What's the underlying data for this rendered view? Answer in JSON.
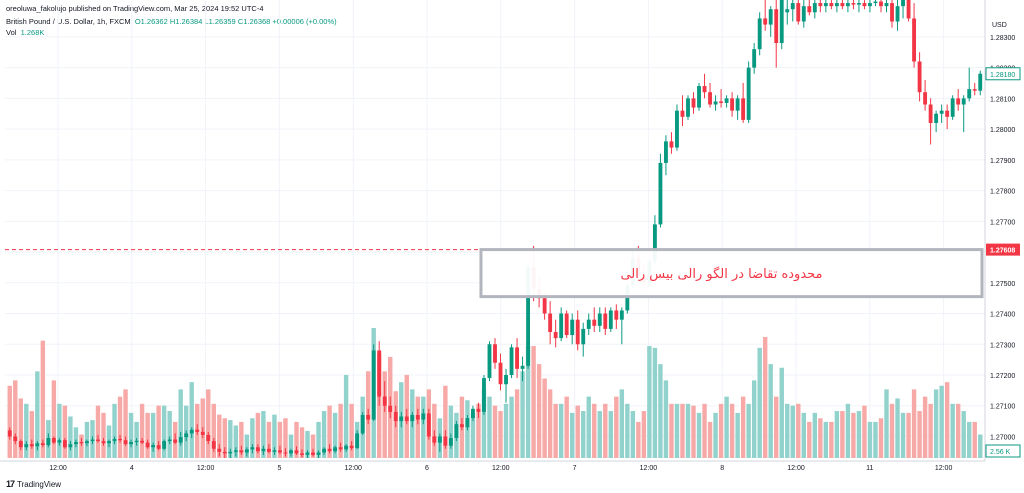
{
  "header": {
    "publisher_line": "oreoluwa_fakolujo published on TradingView.com, Mar 25, 2024 19:52 UTC-4",
    "symbol_line": "British Pound / U.S. Dollar, 1h, FXCM",
    "ohlc": "O1.26362 H1.26384 L1.26359 C1.26368 +0.00006 (+0.00%)",
    "volume_label": "Vol",
    "volume_value": "1.268K"
  },
  "footer": {
    "brand": "TradingView",
    "logo_icon": "tradingview-logo-icon"
  },
  "colors": {
    "up": "#089981",
    "down": "#f23645",
    "vol_up": "#92d2cc",
    "vol_down": "#f7a9a7",
    "dashed_line": "#f23645",
    "box_border": "#b2b5be",
    "box_text": "#f23645"
  },
  "chart_data": {
    "type": "candlestick",
    "currency": "USD",
    "y_ticks": [
      "1.28300",
      "1.28200",
      "1.28100",
      "1.28000",
      "1.27900",
      "1.27800",
      "1.27700",
      "1.27600",
      "1.27500",
      "1.27400",
      "1.27300",
      "1.27200",
      "1.27100",
      "1.27000"
    ],
    "x_ticks": [
      "12:00",
      "4",
      "12:00",
      "5",
      "12:00",
      "6",
      "12:00",
      "7",
      "12:00",
      "8",
      "12:00",
      "11",
      "12:00"
    ],
    "last_price_label": "1.28180",
    "dashed_level_label": "1.27608",
    "dashed_level": 1.27608,
    "volume_label": "2.56 K",
    "annotation": "محدوده تقاضا در الگو رالی بیس رالی",
    "demand_zone": {
      "top": 1.27608,
      "bottom": 1.27455,
      "from_index": 86,
      "to_index": 139
    },
    "ylim": [
      1.2693,
      1.2842
    ],
    "candles": [
      [
        1.2702,
        1.2703,
        1.2699,
        1.27,
        400
      ],
      [
        1.27,
        1.2701,
        1.26975,
        1.26985,
        430
      ],
      [
        1.26985,
        1.2699,
        1.26955,
        1.26965,
        330
      ],
      [
        1.26965,
        1.26985,
        1.26955,
        1.26975,
        300
      ],
      [
        1.26975,
        1.2699,
        1.2696,
        1.26968,
        260
      ],
      [
        1.26968,
        1.26985,
        1.26955,
        1.26978,
        480
      ],
      [
        1.26978,
        1.2699,
        1.26965,
        1.26972,
        650
      ],
      [
        1.26972,
        1.2701,
        1.26965,
        1.26995,
        210
      ],
      [
        1.26995,
        1.27,
        1.26975,
        1.2698,
        430
      ],
      [
        1.2698,
        1.26995,
        1.2697,
        1.26988,
        300
      ],
      [
        1.26988,
        1.26995,
        1.2696,
        1.26965,
        290
      ],
      [
        1.26965,
        1.26985,
        1.26955,
        1.26975,
        230
      ],
      [
        1.26975,
        1.2699,
        1.26965,
        1.26982,
        170
      ],
      [
        1.26982,
        1.26995,
        1.2697,
        1.26978,
        130
      ],
      [
        1.26978,
        1.2699,
        1.26968,
        1.26985,
        200
      ],
      [
        1.26985,
        1.27,
        1.26975,
        1.2699,
        210
      ],
      [
        1.2699,
        1.27005,
        1.2698,
        1.26985,
        290
      ],
      [
        1.26985,
        1.26995,
        1.2697,
        1.26978,
        250
      ],
      [
        1.26978,
        1.2699,
        1.26965,
        1.26985,
        180
      ],
      [
        1.26985,
        1.27,
        1.26975,
        1.26992,
        300
      ],
      [
        1.26992,
        1.27005,
        1.2698,
        1.26988,
        340
      ],
      [
        1.26988,
        1.27,
        1.2697,
        1.26975,
        380
      ],
      [
        1.26975,
        1.2699,
        1.26965,
        1.26982,
        250
      ],
      [
        1.26982,
        1.26995,
        1.2697,
        1.26986,
        200
      ],
      [
        1.26986,
        1.26995,
        1.26975,
        1.2698,
        300
      ],
      [
        1.2698,
        1.2699,
        1.2696,
        1.26965,
        250
      ],
      [
        1.26965,
        1.2698,
        1.2695,
        1.26972,
        250
      ],
      [
        1.26972,
        1.26985,
        1.26955,
        1.2696,
        290
      ],
      [
        1.2696,
        1.2699,
        1.26955,
        1.26985,
        290
      ],
      [
        1.26985,
        1.27,
        1.26975,
        1.2699,
        260
      ],
      [
        1.2699,
        1.2701,
        1.26975,
        1.2698,
        200
      ],
      [
        1.2698,
        1.27015,
        1.2697,
        1.26998,
        380
      ],
      [
        1.26998,
        1.2702,
        1.26985,
        1.2701,
        290
      ],
      [
        1.2701,
        1.2703,
        1.26995,
        1.27022,
        420
      ],
      [
        1.27022,
        1.2704,
        1.27005,
        1.27015,
        300
      ],
      [
        1.27015,
        1.2703,
        1.26995,
        1.27005,
        330
      ],
      [
        1.27005,
        1.27015,
        1.26975,
        1.26985,
        380
      ],
      [
        1.26985,
        1.26995,
        1.2695,
        1.2696,
        300
      ],
      [
        1.2696,
        1.26975,
        1.26935,
        1.2695,
        240
      ],
      [
        1.2695,
        1.26965,
        1.2693,
        1.26945,
        220
      ],
      [
        1.26945,
        1.2696,
        1.2693,
        1.2695,
        210
      ],
      [
        1.2695,
        1.26965,
        1.26935,
        1.26955,
        180
      ],
      [
        1.26955,
        1.2697,
        1.2694,
        1.26948,
        200
      ],
      [
        1.26948,
        1.26965,
        1.26935,
        1.26958,
        130
      ],
      [
        1.26958,
        1.26975,
        1.26945,
        1.26965,
        220
      ],
      [
        1.26965,
        1.26975,
        1.26945,
        1.26952,
        250
      ],
      [
        1.26952,
        1.2697,
        1.2694,
        1.2696,
        260
      ],
      [
        1.2696,
        1.26975,
        1.26945,
        1.2695,
        200
      ],
      [
        1.2695,
        1.26965,
        1.2694,
        1.26955,
        240
      ],
      [
        1.26955,
        1.2697,
        1.26942,
        1.26948,
        200
      ],
      [
        1.26948,
        1.26962,
        1.26935,
        1.26945,
        220
      ],
      [
        1.26945,
        1.2696,
        1.26935,
        1.26955,
        130
      ],
      [
        1.26955,
        1.26968,
        1.2694,
        1.26945,
        200
      ],
      [
        1.26945,
        1.26958,
        1.26932,
        1.2694,
        170
      ],
      [
        1.2694,
        1.26955,
        1.2693,
        1.26948,
        150
      ],
      [
        1.26948,
        1.2696,
        1.26935,
        1.2694,
        130
      ],
      [
        1.2694,
        1.26955,
        1.2693,
        1.26948,
        200
      ],
      [
        1.26948,
        1.26965,
        1.2694,
        1.2696,
        260
      ],
      [
        1.2696,
        1.26975,
        1.26945,
        1.26952,
        290
      ],
      [
        1.26952,
        1.2697,
        1.26945,
        1.26965,
        250
      ],
      [
        1.26965,
        1.2698,
        1.2695,
        1.26958,
        300
      ],
      [
        1.26958,
        1.26975,
        1.2695,
        1.2697,
        460
      ],
      [
        1.2697,
        1.26985,
        1.26955,
        1.26962,
        300
      ],
      [
        1.26962,
        1.2702,
        1.2696,
        1.2701,
        200
      ],
      [
        1.2701,
        1.2708,
        1.27005,
        1.2707,
        340
      ],
      [
        1.2707,
        1.2709,
        1.2704,
        1.27055,
        480
      ],
      [
        1.27055,
        1.273,
        1.2705,
        1.2728,
        720
      ],
      [
        1.2728,
        1.2731,
        1.271,
        1.2713,
        580
      ],
      [
        1.2713,
        1.2718,
        1.2708,
        1.271,
        480
      ],
      [
        1.271,
        1.2713,
        1.2706,
        1.2708,
        560
      ],
      [
        1.2708,
        1.271,
        1.2703,
        1.2705,
        370
      ],
      [
        1.2705,
        1.2708,
        1.2703,
        1.27065,
        420
      ],
      [
        1.27065,
        1.2709,
        1.2704,
        1.2705,
        460
      ],
      [
        1.2705,
        1.2708,
        1.2703,
        1.2707,
        380
      ],
      [
        1.2707,
        1.2709,
        1.2704,
        1.27055,
        340
      ],
      [
        1.27055,
        1.2709,
        1.2704,
        1.27075,
        340
      ],
      [
        1.27075,
        1.2709,
        1.2699,
        1.27,
        380
      ],
      [
        1.27,
        1.2702,
        1.2697,
        1.2698,
        300
      ],
      [
        1.2698,
        1.2701,
        1.2695,
        1.27,
        220
      ],
      [
        1.27,
        1.2702,
        1.2696,
        1.2697,
        400
      ],
      [
        1.2697,
        1.2701,
        1.2696,
        1.26995,
        290
      ],
      [
        1.26995,
        1.2705,
        1.26985,
        1.2704,
        250
      ],
      [
        1.2704,
        1.2706,
        1.2702,
        1.2703,
        340
      ],
      [
        1.2703,
        1.2707,
        1.2702,
        1.2706,
        320
      ],
      [
        1.2706,
        1.271,
        1.2705,
        1.2709,
        250
      ],
      [
        1.2709,
        1.2711,
        1.2706,
        1.2708,
        300
      ],
      [
        1.2708,
        1.272,
        1.2707,
        1.2719,
        380
      ],
      [
        1.2719,
        1.2731,
        1.2718,
        1.273,
        340
      ],
      [
        1.273,
        1.2732,
        1.2722,
        1.2724,
        290
      ],
      [
        1.2724,
        1.2727,
        1.2715,
        1.2717,
        260
      ],
      [
        1.2717,
        1.2722,
        1.2711,
        1.272,
        300
      ],
      [
        1.272,
        1.273,
        1.2719,
        1.2729,
        340
      ],
      [
        1.2729,
        1.2732,
        1.2719,
        1.2722,
        380
      ],
      [
        1.2722,
        1.2726,
        1.2718,
        1.2723,
        480
      ],
      [
        1.2723,
        1.2756,
        1.2722,
        1.2755,
        620
      ],
      [
        1.2755,
        1.2762,
        1.2744,
        1.2748,
        620
      ],
      [
        1.2748,
        1.2752,
        1.2742,
        1.2745,
        520
      ],
      [
        1.2745,
        1.2747,
        1.2738,
        1.274,
        440
      ],
      [
        1.274,
        1.2744,
        1.273,
        1.2734,
        380
      ],
      [
        1.2734,
        1.2738,
        1.2729,
        1.2732,
        300
      ],
      [
        1.2732,
        1.2742,
        1.2731,
        1.274,
        300
      ],
      [
        1.274,
        1.2741,
        1.2732,
        1.2733,
        340
      ],
      [
        1.2733,
        1.274,
        1.273,
        1.2738,
        250
      ],
      [
        1.2738,
        1.2741,
        1.2728,
        1.273,
        290
      ],
      [
        1.273,
        1.2737,
        1.2726,
        1.2735,
        260
      ],
      [
        1.2735,
        1.274,
        1.2733,
        1.2738,
        340
      ],
      [
        1.2738,
        1.2742,
        1.2734,
        1.2736,
        300
      ],
      [
        1.2736,
        1.2742,
        1.2734,
        1.274,
        260
      ],
      [
        1.274,
        1.2742,
        1.2733,
        1.2735,
        300
      ],
      [
        1.2735,
        1.2742,
        1.2734,
        1.2741,
        260
      ],
      [
        1.2741,
        1.2743,
        1.2735,
        1.2738,
        340
      ],
      [
        1.2738,
        1.2742,
        1.273,
        1.2741,
        380
      ],
      [
        1.2741,
        1.275,
        1.274,
        1.2749,
        300
      ],
      [
        1.2749,
        1.2761,
        1.2748,
        1.2758,
        260
      ],
      [
        1.2758,
        1.2762,
        1.275,
        1.2752,
        200
      ],
      [
        1.2752,
        1.2756,
        1.2748,
        1.275,
        260
      ],
      [
        1.275,
        1.2758,
        1.2749,
        1.2757,
        620
      ],
      [
        1.2757,
        1.2772,
        1.2756,
        1.2769,
        610
      ],
      [
        1.2769,
        1.2792,
        1.2768,
        1.2789,
        520
      ],
      [
        1.2789,
        1.2798,
        1.2785,
        1.2796,
        430
      ],
      [
        1.2796,
        1.2799,
        1.2792,
        1.2794,
        300
      ],
      [
        1.2794,
        1.2808,
        1.2793,
        1.2806,
        300
      ],
      [
        1.2806,
        1.2811,
        1.2801,
        1.2804,
        300
      ],
      [
        1.2804,
        1.2811,
        1.2803,
        1.281,
        300
      ],
      [
        1.281,
        1.2812,
        1.2805,
        1.2807,
        290
      ],
      [
        1.2807,
        1.2815,
        1.2806,
        1.2814,
        250
      ],
      [
        1.2814,
        1.2818,
        1.281,
        1.2812,
        300
      ],
      [
        1.2812,
        1.2815,
        1.2807,
        1.2808,
        200
      ],
      [
        1.2808,
        1.2811,
        1.2806,
        1.2809,
        250
      ],
      [
        1.2809,
        1.2813,
        1.2807,
        1.28085,
        300
      ],
      [
        1.28085,
        1.2811,
        1.2807,
        1.281,
        340
      ],
      [
        1.281,
        1.2812,
        1.2804,
        1.2806,
        300
      ],
      [
        1.2806,
        1.2811,
        1.2803,
        1.281,
        250
      ],
      [
        1.281,
        1.2815,
        1.2802,
        1.2803,
        340
      ],
      [
        1.2803,
        1.2822,
        1.2802,
        1.282,
        300
      ],
      [
        1.282,
        1.2828,
        1.2818,
        1.2826,
        430
      ],
      [
        1.2826,
        1.2838,
        1.2824,
        1.2836,
        610
      ],
      [
        1.2836,
        1.2842,
        1.2832,
        1.2834,
        670
      ],
      [
        1.2834,
        1.284,
        1.283,
        1.2839,
        520
      ],
      [
        1.2839,
        1.2842,
        1.282,
        1.2828,
        340
      ],
      [
        1.2828,
        1.2842,
        1.2826,
        1.2842,
        500
      ],
      [
        1.2838,
        1.2842,
        1.2834,
        1.2839,
        300
      ],
      [
        1.2839,
        1.2842,
        1.2835,
        1.2841,
        290
      ],
      [
        1.2841,
        1.2842,
        1.2834,
        1.2835,
        300
      ],
      [
        1.2835,
        1.2842,
        1.2833,
        1.284,
        250
      ],
      [
        1.284,
        1.2842,
        1.2837,
        1.2838,
        200
      ],
      [
        1.2838,
        1.2842,
        1.2836,
        1.2841,
        250
      ],
      [
        1.2841,
        1.2842,
        1.2838,
        1.284,
        220
      ],
      [
        1.284,
        1.2842,
        1.2838,
        1.2841,
        200
      ],
      [
        1.2841,
        1.2842,
        1.2839,
        1.284,
        200
      ],
      [
        1.284,
        1.2842,
        1.2838,
        1.2841,
        260
      ],
      [
        1.2841,
        1.2842,
        1.2839,
        1.284,
        260
      ],
      [
        1.284,
        1.2842,
        1.2838,
        1.2841,
        300
      ],
      [
        1.2841,
        1.2842,
        1.2839,
        1.28405,
        250
      ],
      [
        1.28405,
        1.2842,
        1.2838,
        1.2841,
        260
      ],
      [
        1.2841,
        1.2842,
        1.2839,
        1.284,
        290
      ],
      [
        1.284,
        1.2842,
        1.2838,
        1.2841,
        200
      ],
      [
        1.2841,
        1.2842,
        1.284,
        1.28415,
        200
      ],
      [
        1.28415,
        1.2842,
        1.2838,
        1.284,
        220
      ],
      [
        1.284,
        1.2842,
        1.2838,
        1.2841,
        380
      ],
      [
        1.2841,
        1.2842,
        1.2833,
        1.2835,
        300
      ],
      [
        1.2835,
        1.2842,
        1.2832,
        1.284,
        330
      ],
      [
        1.284,
        1.2842,
        1.2836,
        1.2842,
        250
      ],
      [
        1.2842,
        1.2842,
        1.2835,
        1.2836,
        250
      ],
      [
        1.2836,
        1.2841,
        1.282,
        1.2822,
        380
      ],
      [
        1.2822,
        1.2825,
        1.2809,
        1.2812,
        260
      ],
      [
        1.2812,
        1.2816,
        1.2806,
        1.2808,
        340
      ],
      [
        1.2808,
        1.281,
        1.2795,
        1.2802,
        300
      ],
      [
        1.2802,
        1.2806,
        1.2799,
        1.2805,
        380
      ],
      [
        1.2805,
        1.2808,
        1.2802,
        1.2806,
        400
      ],
      [
        1.2806,
        1.2808,
        1.28,
        1.2804,
        420
      ],
      [
        1.2804,
        1.2811,
        1.2803,
        1.281,
        300
      ],
      [
        1.281,
        1.2813,
        1.2806,
        1.2808,
        300
      ],
      [
        1.2808,
        1.2811,
        1.2799,
        1.281,
        260
      ],
      [
        1.281,
        1.282,
        1.2809,
        1.2813,
        200
      ],
      [
        1.2813,
        1.2815,
        1.2811,
        1.28125,
        200
      ],
      [
        1.28125,
        1.2819,
        1.2811,
        1.2818,
        130
      ]
    ]
  }
}
